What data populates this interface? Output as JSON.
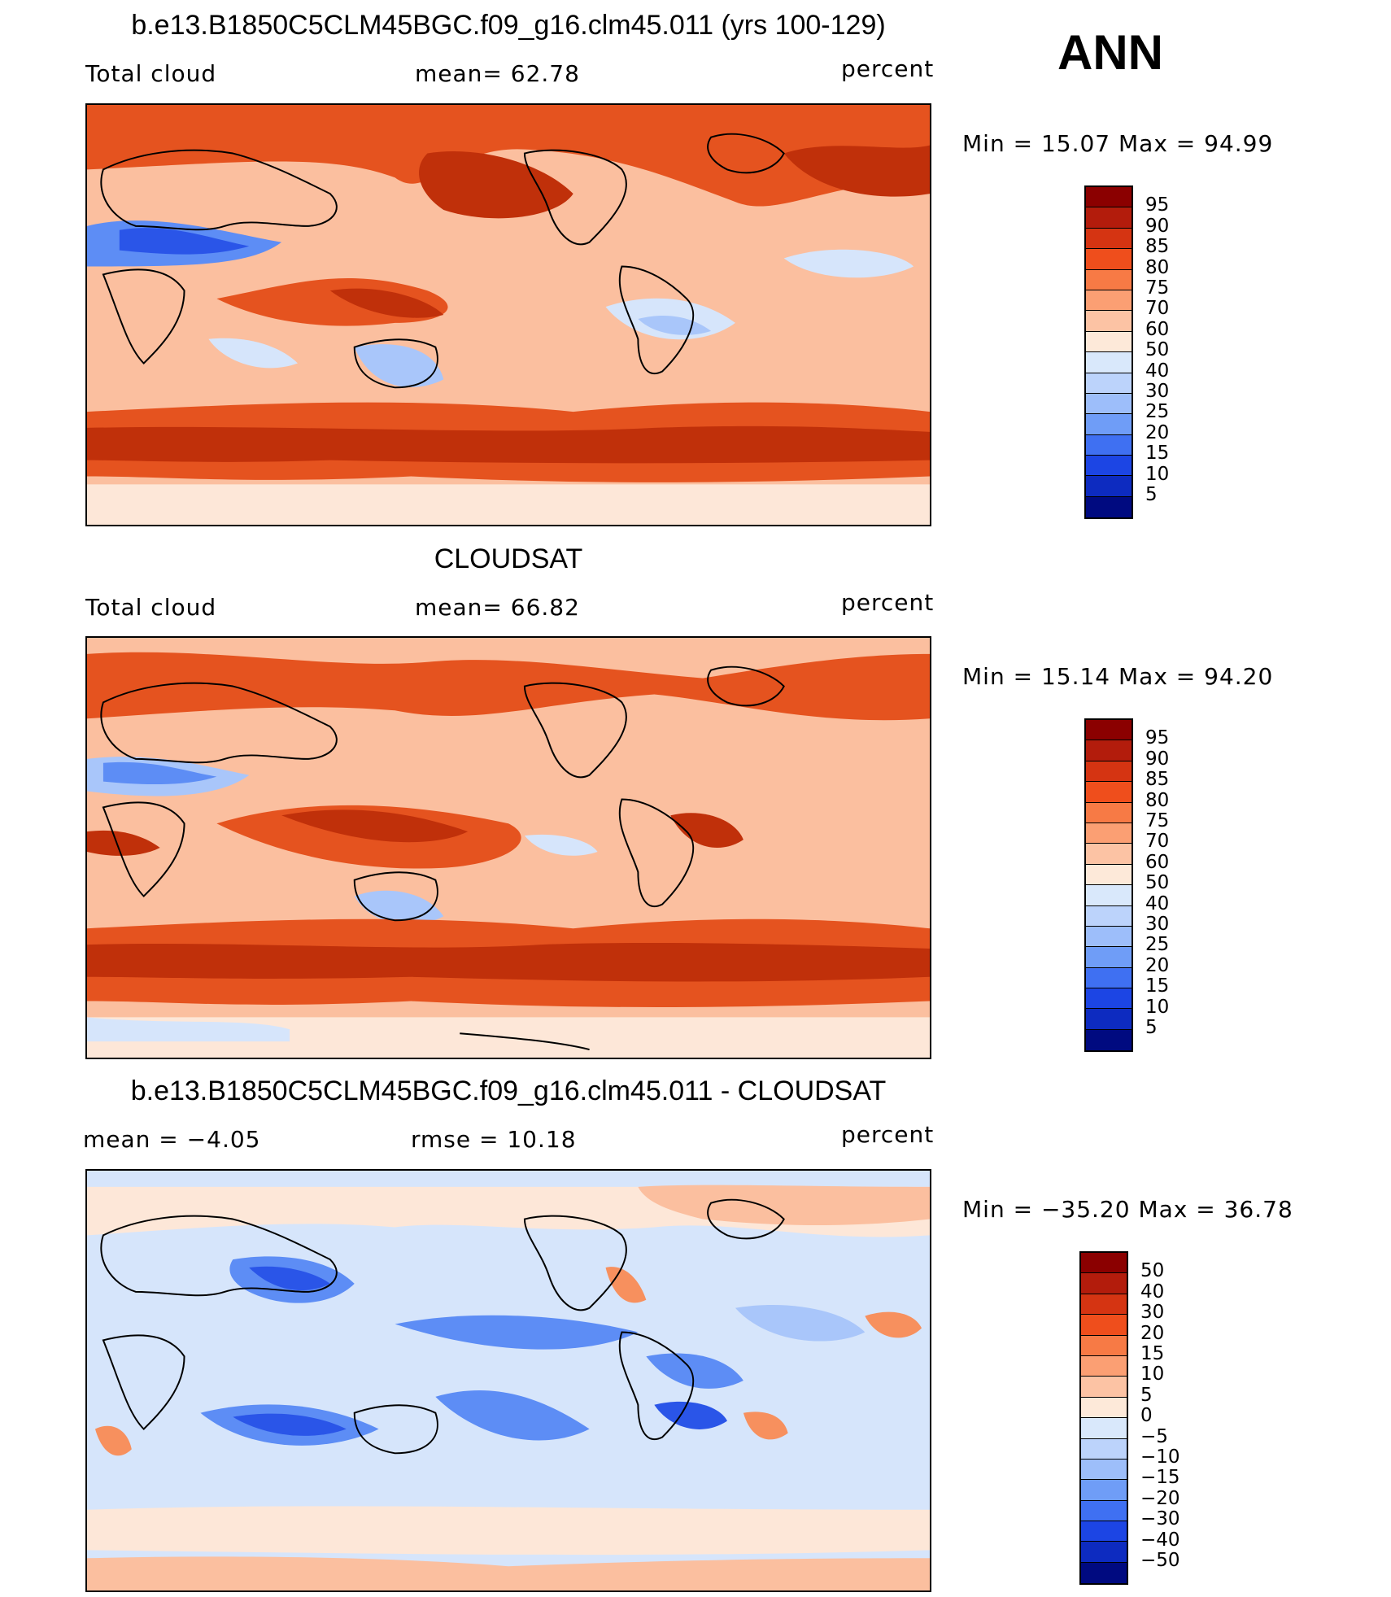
{
  "season": "ANN",
  "panels": [
    {
      "title": "b.e13.B1850C5CLM45BGC.f09_g16.clm45.011 (yrs 100-129)",
      "left_label": "Total cloud",
      "center_label": "mean=   62.78",
      "units": "percent",
      "min_max": "Min  =   15.07  Max  =   94.99",
      "map_alt": "global map of annual mean total cloud fraction from model run"
    },
    {
      "title": "CLOUDSAT",
      "left_label": "Total cloud",
      "center_label": "mean=   66.82",
      "units": "percent",
      "min_max": "Min  =   15.14  Max  =   94.20",
      "map_alt": "global map of annual mean total cloud fraction from CloudSat observations"
    },
    {
      "title": "b.e13.B1850C5CLM45BGC.f09_g16.clm45.011 - CLOUDSAT",
      "left_label": "mean  =   −4.05",
      "center_label": "rmse  =   10.18",
      "units": "percent",
      "min_max": "Min  = −35.20  Max  =   36.78",
      "map_alt": "global map of difference model minus CloudSat total cloud"
    }
  ],
  "colorbars": {
    "absolute": {
      "colors": [
        "#8b0000",
        "#b31c0c",
        "#d53412",
        "#ef4e1c",
        "#f77a45",
        "#fb9f73",
        "#fcc3a4",
        "#fde9d9",
        "#d9e8fb",
        "#bcd3fb",
        "#9dbefa",
        "#6f9df7",
        "#3f70f2",
        "#1c45e4",
        "#0d2bc0",
        "#000a80"
      ],
      "labels": [
        "95",
        "90",
        "85",
        "80",
        "75",
        "70",
        "60",
        "50",
        "40",
        "30",
        "25",
        "20",
        "15",
        "10",
        "5"
      ]
    },
    "difference": {
      "colors": [
        "#8b0000",
        "#b31c0c",
        "#d53412",
        "#ef4e1c",
        "#f77a45",
        "#fb9f73",
        "#fcc3a4",
        "#fde9d9",
        "#d9e8fb",
        "#bcd3fb",
        "#9dbefa",
        "#6f9df7",
        "#3f70f2",
        "#1c45e4",
        "#0d2bc0",
        "#000a80"
      ],
      "labels": [
        "50",
        "40",
        "30",
        "20",
        "15",
        "10",
        "5",
        "0",
        "−5",
        "−10",
        "−15",
        "−20",
        "−30",
        "−40",
        "−50"
      ]
    }
  },
  "palette": {
    "deep_red": "#c0300a",
    "red": "#e5531f",
    "orange": "#f7905e",
    "salmon": "#fbbf9f",
    "cream": "#fde7d8",
    "pale_blue": "#d6e5fb",
    "light_blue": "#a9c6fa",
    "blue": "#5d8df5",
    "deep_blue": "#2a55e8",
    "land_outline": "#000000"
  }
}
